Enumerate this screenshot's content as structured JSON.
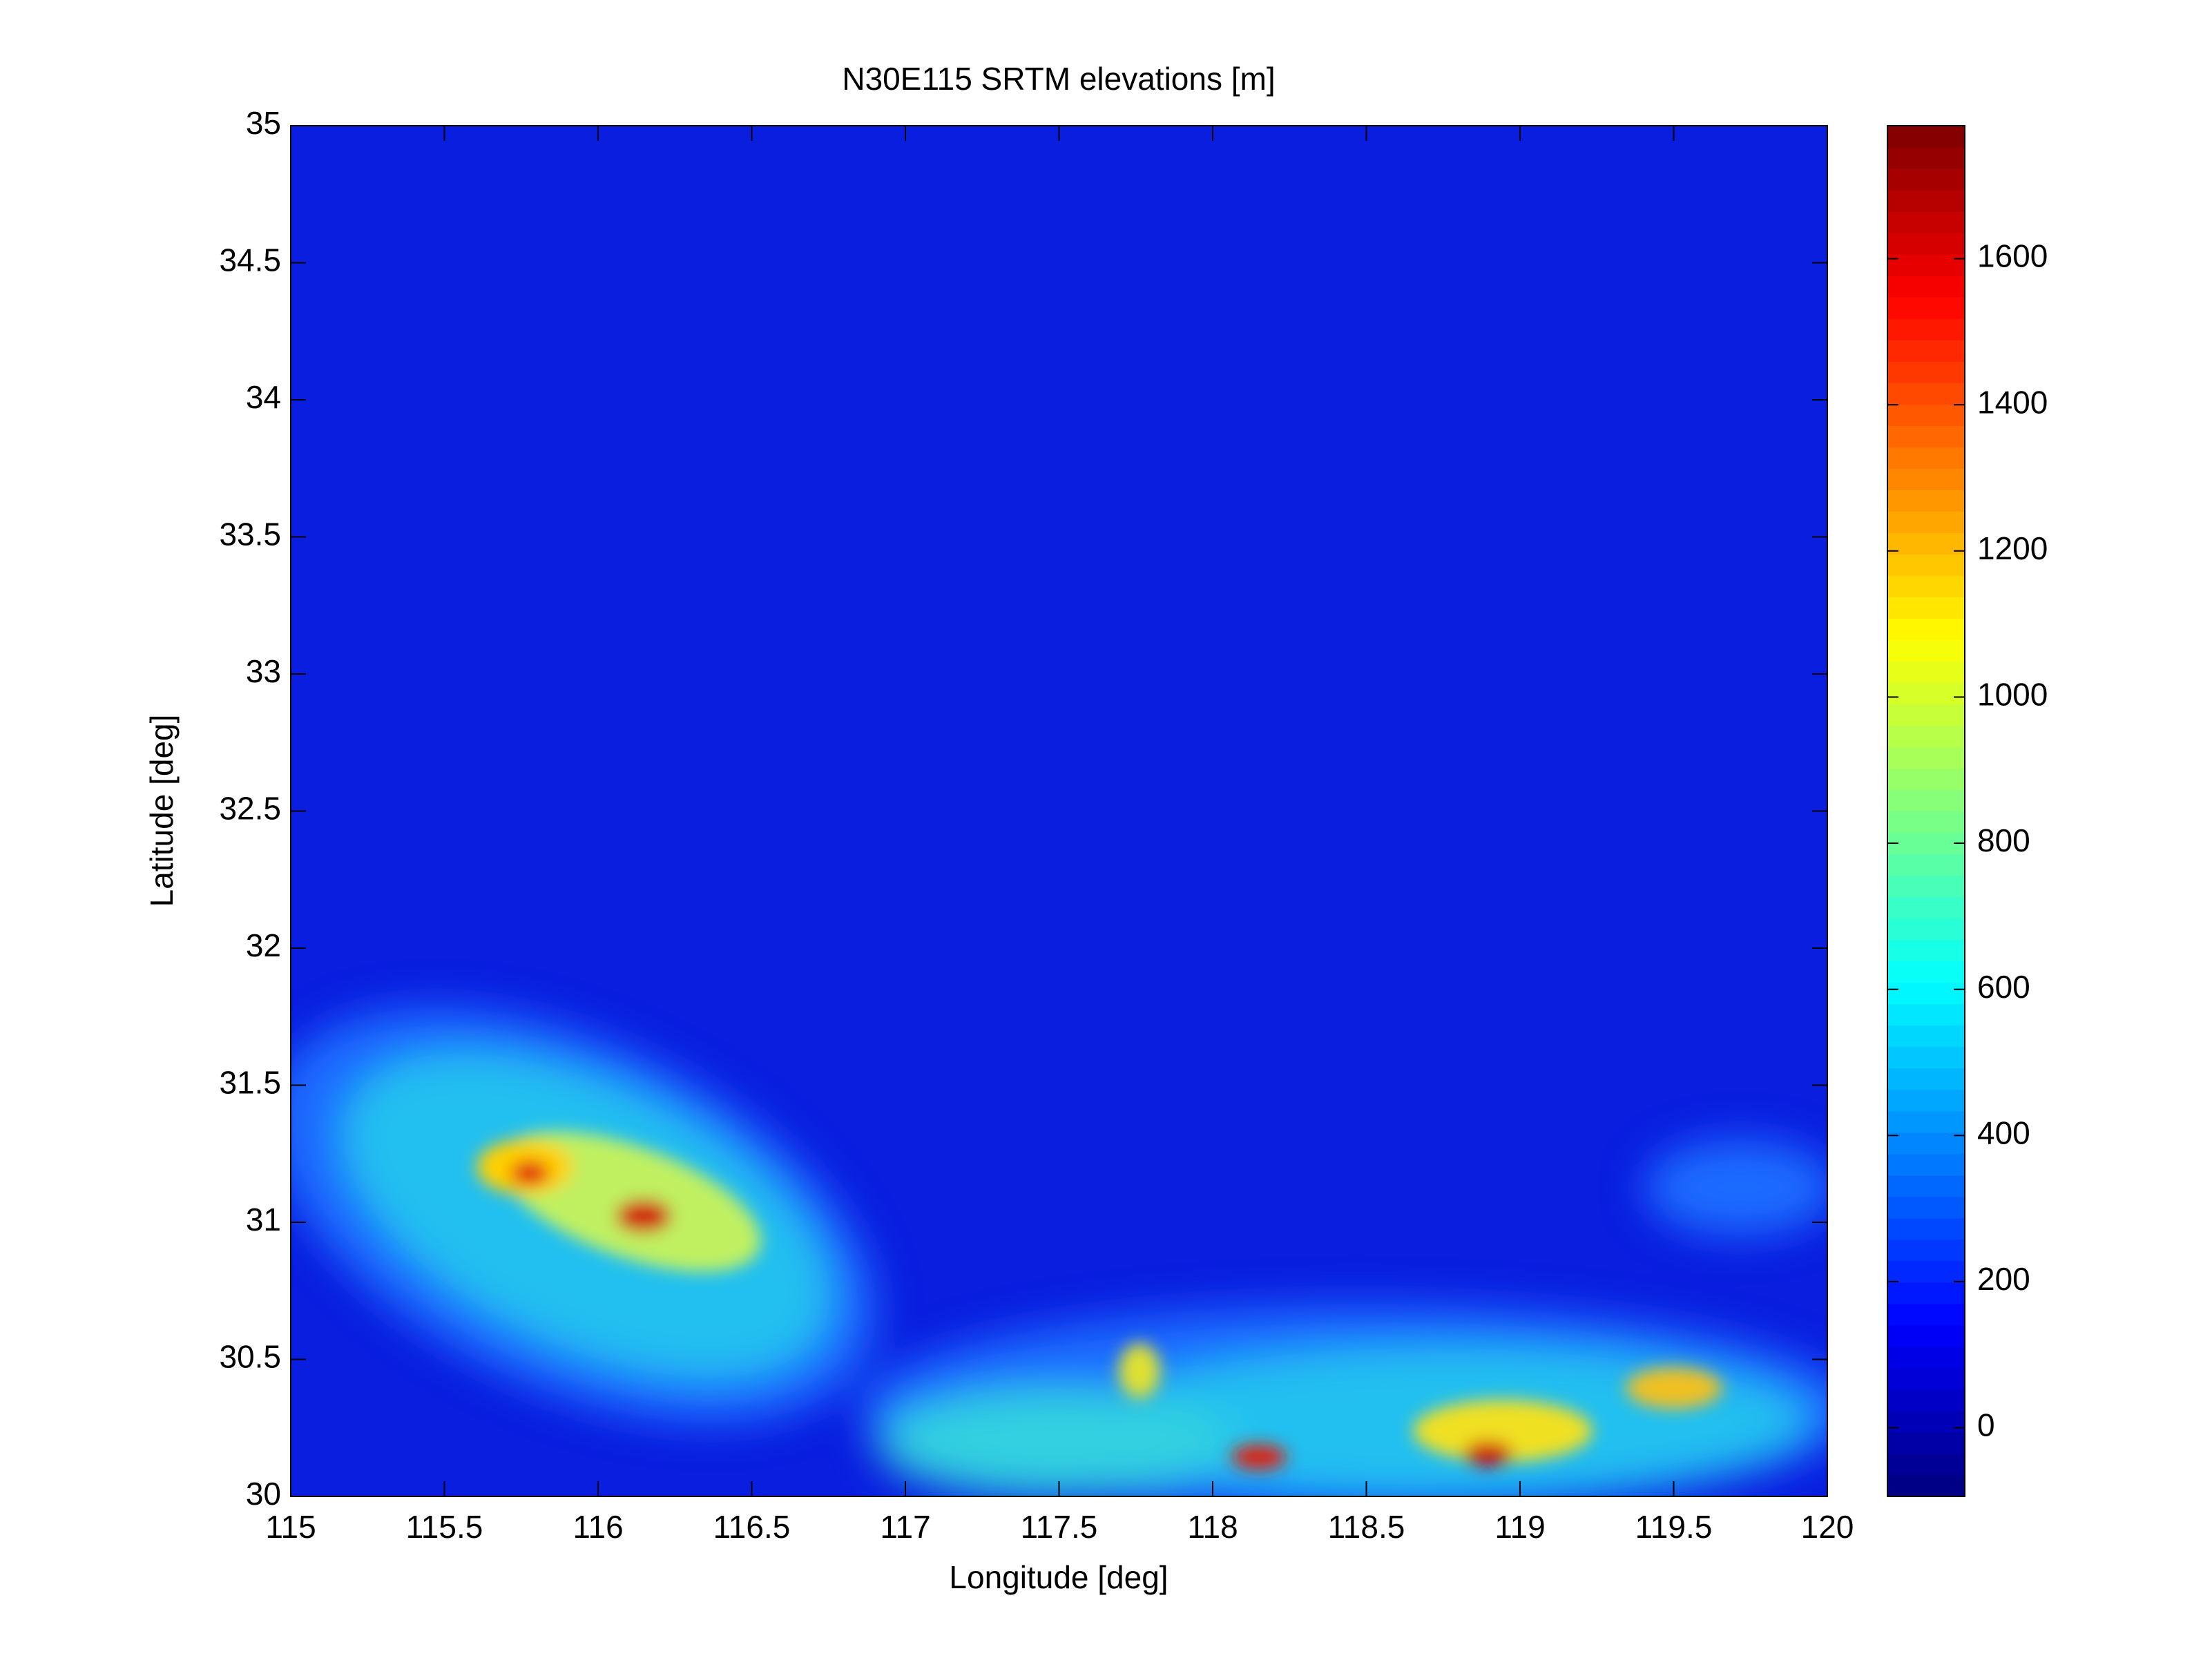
{
  "chart_data": {
    "type": "heatmap",
    "title": "N30E115 SRTM elevations [m]",
    "x_label": "Longitude [deg]",
    "y_label": "Latitude [deg]",
    "xlim": [
      115,
      120
    ],
    "xticks": [
      115,
      115.5,
      116,
      116.5,
      117,
      117.5,
      118,
      118.5,
      119,
      119.5,
      120
    ],
    "ylim": [
      30,
      35
    ],
    "yticks": [
      30,
      30.5,
      31,
      31.5,
      32,
      32.5,
      33,
      33.5,
      34,
      34.5,
      35
    ],
    "colormap": "jet",
    "clim": [
      -94,
      1782
    ],
    "cticks": [
      0,
      200,
      400,
      600,
      800,
      1000,
      1200,
      1400,
      1600
    ]
  }
}
